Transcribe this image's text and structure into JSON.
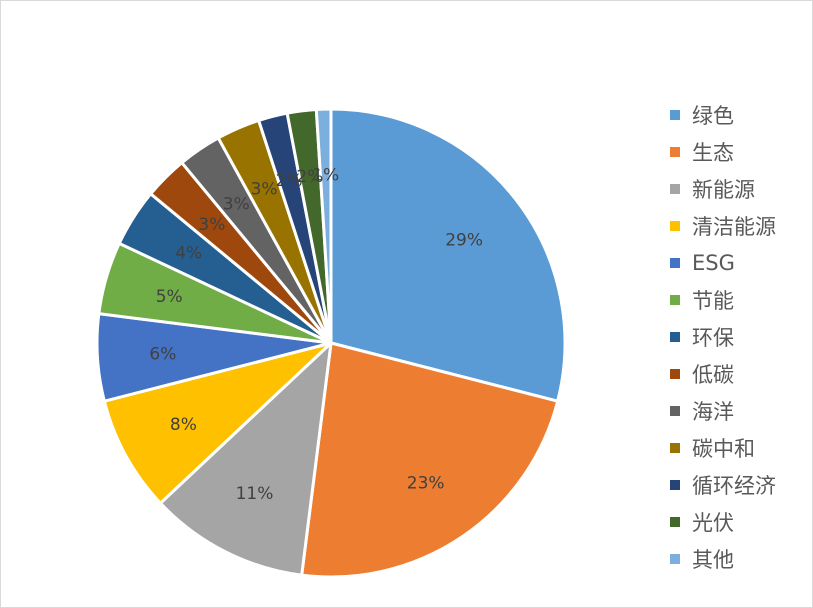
{
  "chart_data": {
    "type": "pie",
    "legend_position": "right",
    "slices": [
      {
        "name": "绿色",
        "value": 29,
        "label": "29%",
        "color": "#5B9BD5"
      },
      {
        "name": "生态",
        "value": 23,
        "label": "23%",
        "color": "#ED7D31"
      },
      {
        "name": "新能源",
        "value": 11,
        "label": "11%",
        "color": "#A5A5A5"
      },
      {
        "name": "清洁能源",
        "value": 8,
        "label": "8%",
        "color": "#FFC000"
      },
      {
        "name": "ESG",
        "value": 6,
        "label": "6%",
        "color": "#4472C4"
      },
      {
        "name": "节能",
        "value": 5,
        "label": "5%",
        "color": "#70AD47"
      },
      {
        "name": "环保",
        "value": 4,
        "label": "4%",
        "color": "#255E91"
      },
      {
        "name": "低碳",
        "value": 3,
        "label": "3%",
        "color": "#9E480E"
      },
      {
        "name": "海洋",
        "value": 3,
        "label": "3%",
        "color": "#636363"
      },
      {
        "name": "碳中和",
        "value": 3,
        "label": "3%",
        "color": "#997300"
      },
      {
        "name": "循环经济",
        "value": 2,
        "label": "2%",
        "color": "#264478"
      },
      {
        "name": "光伏",
        "value": 2,
        "label": "2%",
        "color": "#43682B"
      },
      {
        "name": "其他",
        "value": 1,
        "label": "1%",
        "color": "#7CAFDD"
      }
    ]
  }
}
